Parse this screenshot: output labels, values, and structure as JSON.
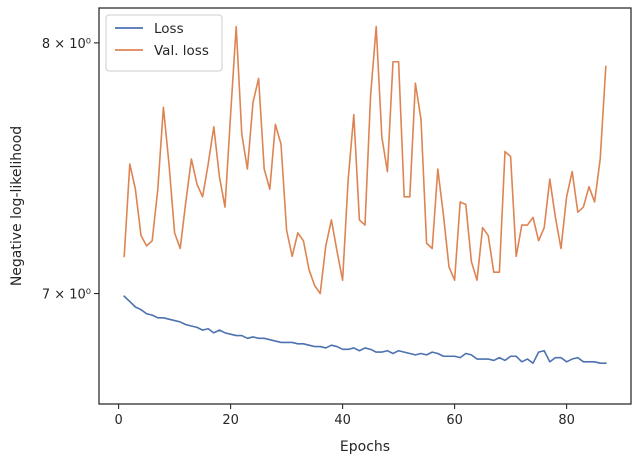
{
  "chart_data": {
    "type": "line",
    "xlabel": "Epochs",
    "ylabel": "Negative log-likelihood",
    "yscale": "log",
    "xlim": [
      -3.5,
      91.5
    ],
    "ylim": [
      6.6,
      8.15
    ],
    "xticks": [
      0,
      20,
      40,
      60,
      80
    ],
    "yticks": [
      {
        "value": 7,
        "label": "7 × 10⁰"
      },
      {
        "value": 8,
        "label": "8 × 10⁰"
      }
    ],
    "legend_position": "top-left",
    "grid": false,
    "series": [
      {
        "name": "Loss",
        "color": "#4c72b0",
        "x": [
          1,
          2,
          3,
          4,
          5,
          6,
          7,
          8,
          9,
          10,
          11,
          12,
          13,
          14,
          15,
          16,
          17,
          18,
          19,
          20,
          21,
          22,
          23,
          24,
          25,
          26,
          27,
          28,
          29,
          30,
          31,
          32,
          33,
          34,
          35,
          36,
          37,
          38,
          39,
          40,
          41,
          42,
          43,
          44,
          45,
          46,
          47,
          48,
          49,
          50,
          51,
          52,
          53,
          54,
          55,
          56,
          57,
          58,
          59,
          60,
          61,
          62,
          63,
          64,
          65,
          66,
          67,
          68,
          69,
          70,
          71,
          72,
          73,
          74,
          75,
          76,
          77,
          78,
          79,
          80,
          81,
          82,
          83,
          84,
          85,
          86,
          87
        ],
        "y": [
          6.99,
          6.97,
          6.95,
          6.94,
          6.925,
          6.92,
          6.91,
          6.91,
          6.905,
          6.9,
          6.895,
          6.885,
          6.88,
          6.875,
          6.865,
          6.87,
          6.855,
          6.865,
          6.855,
          6.85,
          6.845,
          6.845,
          6.835,
          6.84,
          6.835,
          6.835,
          6.83,
          6.825,
          6.82,
          6.82,
          6.82,
          6.815,
          6.815,
          6.81,
          6.805,
          6.805,
          6.8,
          6.81,
          6.805,
          6.795,
          6.795,
          6.8,
          6.79,
          6.8,
          6.795,
          6.785,
          6.785,
          6.79,
          6.78,
          6.79,
          6.785,
          6.78,
          6.775,
          6.78,
          6.775,
          6.785,
          6.78,
          6.77,
          6.77,
          6.77,
          6.765,
          6.78,
          6.775,
          6.76,
          6.76,
          6.76,
          6.755,
          6.765,
          6.755,
          6.77,
          6.77,
          6.75,
          6.76,
          6.745,
          6.785,
          6.79,
          6.75,
          6.765,
          6.765,
          6.75,
          6.76,
          6.765,
          6.75,
          6.75,
          6.75,
          6.745,
          6.745
        ]
      },
      {
        "name": "Val. loss",
        "color": "#dd8452",
        "x": [
          1,
          2,
          3,
          4,
          5,
          6,
          7,
          8,
          9,
          10,
          11,
          12,
          13,
          14,
          15,
          16,
          17,
          18,
          19,
          20,
          21,
          22,
          23,
          24,
          25,
          26,
          27,
          28,
          29,
          30,
          31,
          32,
          33,
          34,
          35,
          36,
          37,
          38,
          39,
          40,
          41,
          42,
          43,
          44,
          45,
          46,
          47,
          48,
          49,
          50,
          51,
          52,
          53,
          54,
          55,
          56,
          57,
          58,
          59,
          60,
          61,
          62,
          63,
          64,
          65,
          66,
          67,
          68,
          69,
          70,
          71,
          72,
          73,
          74,
          75,
          76,
          77,
          78,
          79,
          80,
          81,
          82,
          83,
          84,
          85,
          86,
          87
        ],
        "y": [
          7.14,
          7.5,
          7.4,
          7.22,
          7.18,
          7.2,
          7.4,
          7.73,
          7.5,
          7.23,
          7.17,
          7.35,
          7.52,
          7.42,
          7.37,
          7.5,
          7.65,
          7.45,
          7.33,
          7.7,
          8.07,
          7.62,
          7.48,
          7.75,
          7.85,
          7.48,
          7.4,
          7.66,
          7.58,
          7.24,
          7.14,
          7.23,
          7.2,
          7.09,
          7.03,
          7.0,
          7.18,
          7.28,
          7.16,
          7.05,
          7.44,
          7.7,
          7.28,
          7.26,
          7.78,
          8.07,
          7.61,
          7.47,
          7.92,
          7.92,
          7.37,
          7.37,
          7.83,
          7.68,
          7.19,
          7.17,
          7.48,
          7.3,
          7.1,
          7.05,
          7.35,
          7.34,
          7.12,
          7.05,
          7.25,
          7.22,
          7.08,
          7.08,
          7.55,
          7.53,
          7.14,
          7.26,
          7.26,
          7.29,
          7.2,
          7.25,
          7.44,
          7.29,
          7.17,
          7.37,
          7.47,
          7.31,
          7.33,
          7.41,
          7.35,
          7.52,
          7.9
        ]
      }
    ]
  }
}
